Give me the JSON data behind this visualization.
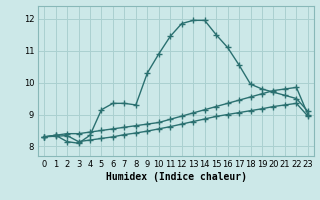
{
  "bg_color": "#cce8e8",
  "grid_color": "#aad0d0",
  "line_color": "#2a7070",
  "marker": "+",
  "markersize": 4,
  "linewidth": 1.0,
  "xlim": [
    -0.5,
    23.5
  ],
  "ylim": [
    7.7,
    12.4
  ],
  "xticks": [
    0,
    1,
    2,
    3,
    4,
    5,
    6,
    7,
    8,
    9,
    10,
    11,
    12,
    13,
    14,
    15,
    16,
    17,
    18,
    19,
    20,
    21,
    22,
    23
  ],
  "yticks": [
    8,
    9,
    10,
    11,
    12
  ],
  "xlabel": "Humidex (Indice chaleur)",
  "xlabel_fontsize": 7.0,
  "tick_fontsize": 6.0,
  "line1_x": [
    0,
    1,
    2,
    3,
    4,
    5,
    6,
    7,
    8,
    9,
    10,
    11,
    12,
    13,
    14,
    15,
    16,
    17,
    18,
    19,
    20,
    21,
    22,
    23
  ],
  "line1_y": [
    8.3,
    8.35,
    8.15,
    8.1,
    8.35,
    9.15,
    9.35,
    9.35,
    9.3,
    10.3,
    10.9,
    11.45,
    11.85,
    11.95,
    11.95,
    11.5,
    11.1,
    10.55,
    9.95,
    9.8,
    9.7,
    9.6,
    9.5,
    9.1
  ],
  "line2_x": [
    0,
    1,
    2,
    3,
    4,
    5,
    6,
    7,
    8,
    9,
    10,
    11,
    12,
    13,
    14,
    15,
    16,
    17,
    18,
    19,
    20,
    21,
    22,
    23
  ],
  "line2_y": [
    8.3,
    8.35,
    8.4,
    8.4,
    8.45,
    8.5,
    8.55,
    8.6,
    8.65,
    8.7,
    8.75,
    8.85,
    8.95,
    9.05,
    9.15,
    9.25,
    9.35,
    9.45,
    9.55,
    9.65,
    9.75,
    9.8,
    9.85,
    9.0
  ],
  "line3_x": [
    0,
    1,
    2,
    3,
    4,
    5,
    6,
    7,
    8,
    9,
    10,
    11,
    12,
    13,
    14,
    15,
    16,
    17,
    18,
    19,
    20,
    21,
    22,
    23
  ],
  "line3_y": [
    8.3,
    8.32,
    8.34,
    8.15,
    8.2,
    8.25,
    8.3,
    8.37,
    8.42,
    8.48,
    8.55,
    8.62,
    8.7,
    8.78,
    8.86,
    8.94,
    9.0,
    9.06,
    9.12,
    9.18,
    9.25,
    9.3,
    9.35,
    8.95
  ],
  "spine_color": "#88b8b8"
}
